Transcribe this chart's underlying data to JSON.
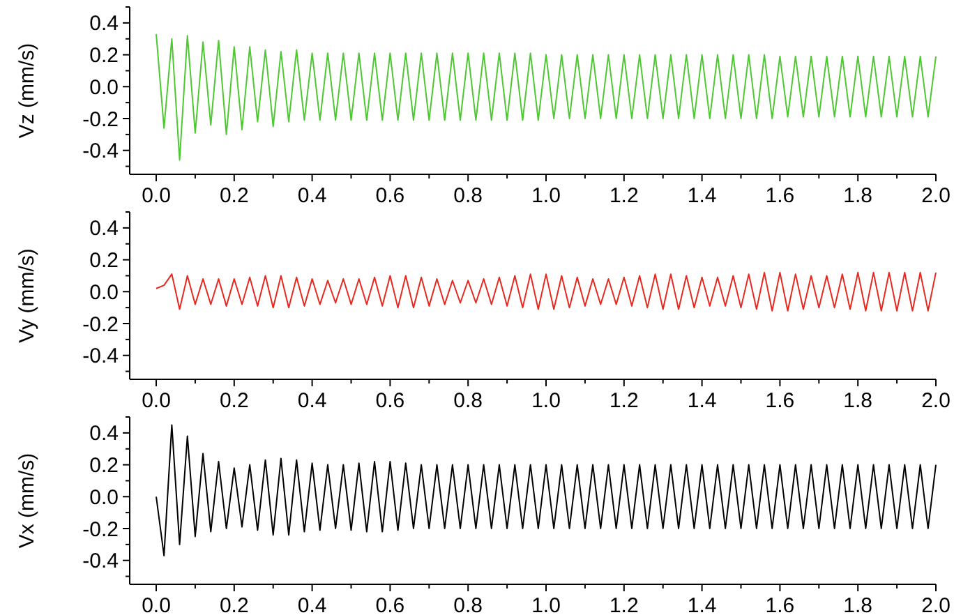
{
  "chart_data": [
    {
      "type": "line",
      "ylabel": "Vz (mm/s)",
      "xlim": [
        -0.068,
        2.0
      ],
      "ylim": [
        -0.55,
        0.5
      ],
      "xticks": [
        {
          "value": 0,
          "label": "0.0"
        },
        {
          "value": 0.1,
          "label": null
        },
        {
          "value": 0.2,
          "label": "0.2"
        },
        {
          "value": 0.3,
          "label": null
        },
        {
          "value": 0.4,
          "label": "0.4"
        },
        {
          "value": 0.5,
          "label": null
        },
        {
          "value": 0.6,
          "label": "0.6"
        },
        {
          "value": 0.7,
          "label": null
        },
        {
          "value": 0.8,
          "label": "0.8"
        },
        {
          "value": 0.9,
          "label": null
        },
        {
          "value": 1,
          "label": "1.0"
        },
        {
          "value": 1.1,
          "label": null
        },
        {
          "value": 1.2,
          "label": "1.2"
        },
        {
          "value": 1.3,
          "label": null
        },
        {
          "value": 1.4,
          "label": "1.4"
        },
        {
          "value": 1.5,
          "label": null
        },
        {
          "value": 1.6,
          "label": "1.6"
        },
        {
          "value": 1.7,
          "label": null
        },
        {
          "value": 1.8,
          "label": "1.8"
        },
        {
          "value": 1.9,
          "label": null
        },
        {
          "value": 2,
          "label": "2.0"
        }
      ],
      "yticks": [
        {
          "value": -0.5,
          "label": null
        },
        {
          "value": -0.4,
          "label": "-0.4"
        },
        {
          "value": -0.3,
          "label": null
        },
        {
          "value": -0.2,
          "label": "-0.2"
        },
        {
          "value": -0.1,
          "label": null
        },
        {
          "value": 0,
          "label": "0.0"
        },
        {
          "value": 0.1,
          "label": null
        },
        {
          "value": 0.2,
          "label": "0.2"
        },
        {
          "value": 0.3,
          "label": null
        },
        {
          "value": 0.4,
          "label": "0.4"
        },
        {
          "value": 0.5,
          "label": null
        }
      ],
      "x": [
        0,
        0.02,
        0.04,
        0.06,
        0.08,
        0.1,
        0.12,
        0.14,
        0.16,
        0.18,
        0.2,
        0.22,
        0.24,
        0.26,
        0.28,
        0.3,
        0.32,
        0.34,
        0.36,
        0.38,
        0.4,
        0.42,
        0.44,
        0.46,
        0.48,
        0.5,
        0.52,
        0.54,
        0.56,
        0.58,
        0.6,
        0.62,
        0.64,
        0.66,
        0.68,
        0.7,
        0.72,
        0.74,
        0.76,
        0.78,
        0.8,
        0.82,
        0.84,
        0.86,
        0.88,
        0.9,
        0.92,
        0.94,
        0.96,
        0.98,
        1,
        1.02,
        1.04,
        1.06,
        1.08,
        1.1,
        1.12,
        1.14,
        1.16,
        1.18,
        1.2,
        1.22,
        1.24,
        1.26,
        1.28,
        1.3,
        1.32,
        1.34,
        1.36,
        1.38,
        1.4,
        1.42,
        1.44,
        1.46,
        1.48,
        1.5,
        1.52,
        1.54,
        1.56,
        1.58,
        1.6,
        1.62,
        1.64,
        1.66,
        1.68,
        1.7,
        1.72,
        1.74,
        1.76,
        1.78,
        1.8,
        1.82,
        1.84,
        1.86,
        1.88,
        1.9,
        1.92,
        1.94,
        1.96,
        1.98,
        2
      ],
      "series": [
        {
          "color": "#4ec832",
          "values": [
            0.33,
            -0.26,
            0.3,
            -0.46,
            0.32,
            -0.29,
            0.28,
            -0.24,
            0.29,
            -0.3,
            0.25,
            -0.27,
            0.25,
            -0.22,
            0.23,
            -0.25,
            0.22,
            -0.22,
            0.23,
            -0.21,
            0.21,
            -0.21,
            0.21,
            -0.21,
            0.21,
            -0.21,
            0.21,
            -0.21,
            0.21,
            -0.21,
            0.21,
            -0.21,
            0.21,
            -0.21,
            0.21,
            -0.21,
            0.21,
            -0.21,
            0.21,
            -0.21,
            0.21,
            -0.21,
            0.21,
            -0.21,
            0.21,
            -0.21,
            0.21,
            -0.21,
            0.21,
            -0.21,
            0.2,
            -0.2,
            0.2,
            -0.2,
            0.2,
            -0.2,
            0.2,
            -0.2,
            0.2,
            -0.2,
            0.2,
            -0.2,
            0.2,
            -0.2,
            0.2,
            -0.2,
            0.2,
            -0.2,
            0.2,
            -0.2,
            0.2,
            -0.2,
            0.2,
            -0.2,
            0.2,
            -0.2,
            0.2,
            -0.2,
            0.2,
            -0.2,
            0.19,
            -0.19,
            0.19,
            -0.19,
            0.19,
            -0.19,
            0.19,
            -0.19,
            0.19,
            -0.19,
            0.19,
            -0.19,
            0.19,
            -0.19,
            0.19,
            -0.19,
            0.19,
            -0.19,
            0.19,
            -0.19,
            0.19
          ]
        }
      ]
    },
    {
      "type": "line",
      "ylabel": "Vy (mm/s)",
      "xlim": [
        -0.068,
        2.0
      ],
      "ylim": [
        -0.55,
        0.5
      ],
      "xticks": [
        {
          "value": 0,
          "label": "0.0"
        },
        {
          "value": 0.1,
          "label": null
        },
        {
          "value": 0.2,
          "label": "0.2"
        },
        {
          "value": 0.3,
          "label": null
        },
        {
          "value": 0.4,
          "label": "0.4"
        },
        {
          "value": 0.5,
          "label": null
        },
        {
          "value": 0.6,
          "label": "0.6"
        },
        {
          "value": 0.7,
          "label": null
        },
        {
          "value": 0.8,
          "label": "0.8"
        },
        {
          "value": 0.9,
          "label": null
        },
        {
          "value": 1,
          "label": "1.0"
        },
        {
          "value": 1.1,
          "label": null
        },
        {
          "value": 1.2,
          "label": "1.2"
        },
        {
          "value": 1.3,
          "label": null
        },
        {
          "value": 1.4,
          "label": "1.4"
        },
        {
          "value": 1.5,
          "label": null
        },
        {
          "value": 1.6,
          "label": "1.6"
        },
        {
          "value": 1.7,
          "label": null
        },
        {
          "value": 1.8,
          "label": "1.8"
        },
        {
          "value": 1.9,
          "label": null
        },
        {
          "value": 2,
          "label": "2.0"
        }
      ],
      "yticks": [
        {
          "value": -0.5,
          "label": null
        },
        {
          "value": -0.4,
          "label": "-0.4"
        },
        {
          "value": -0.3,
          "label": null
        },
        {
          "value": -0.2,
          "label": "-0.2"
        },
        {
          "value": -0.1,
          "label": null
        },
        {
          "value": 0,
          "label": "0.0"
        },
        {
          "value": 0.1,
          "label": null
        },
        {
          "value": 0.2,
          "label": "0.2"
        },
        {
          "value": 0.3,
          "label": null
        },
        {
          "value": 0.4,
          "label": "0.4"
        },
        {
          "value": 0.5,
          "label": null
        }
      ],
      "x": [
        0,
        0.02,
        0.04,
        0.06,
        0.08,
        0.1,
        0.12,
        0.14,
        0.16,
        0.18,
        0.2,
        0.22,
        0.24,
        0.26,
        0.28,
        0.3,
        0.32,
        0.34,
        0.36,
        0.38,
        0.4,
        0.42,
        0.44,
        0.46,
        0.48,
        0.5,
        0.52,
        0.54,
        0.56,
        0.58,
        0.6,
        0.62,
        0.64,
        0.66,
        0.68,
        0.7,
        0.72,
        0.74,
        0.76,
        0.78,
        0.8,
        0.82,
        0.84,
        0.86,
        0.88,
        0.9,
        0.92,
        0.94,
        0.96,
        0.98,
        1,
        1.02,
        1.04,
        1.06,
        1.08,
        1.1,
        1.12,
        1.14,
        1.16,
        1.18,
        1.2,
        1.22,
        1.24,
        1.26,
        1.28,
        1.3,
        1.32,
        1.34,
        1.36,
        1.38,
        1.4,
        1.42,
        1.44,
        1.46,
        1.48,
        1.5,
        1.52,
        1.54,
        1.56,
        1.58,
        1.6,
        1.62,
        1.64,
        1.66,
        1.68,
        1.7,
        1.72,
        1.74,
        1.76,
        1.78,
        1.8,
        1.82,
        1.84,
        1.86,
        1.88,
        1.9,
        1.92,
        1.94,
        1.96,
        1.98,
        2
      ],
      "series": [
        {
          "color": "#e8281e",
          "values": [
            0.02,
            0.04,
            0.11,
            -0.11,
            0.1,
            -0.08,
            0.08,
            -0.08,
            0.08,
            -0.09,
            0.08,
            -0.08,
            0.09,
            -0.09,
            0.1,
            -0.1,
            0.1,
            -0.1,
            0.09,
            -0.09,
            0.08,
            -0.08,
            0.07,
            -0.07,
            0.08,
            -0.08,
            0.08,
            -0.08,
            0.09,
            -0.09,
            0.1,
            -0.1,
            0.1,
            -0.1,
            0.09,
            -0.09,
            0.08,
            -0.08,
            0.07,
            -0.07,
            0.07,
            -0.07,
            0.08,
            -0.08,
            0.09,
            -0.09,
            0.1,
            -0.1,
            0.11,
            -0.11,
            0.11,
            -0.11,
            0.1,
            -0.1,
            0.09,
            -0.09,
            0.08,
            -0.08,
            0.08,
            -0.08,
            0.09,
            -0.09,
            0.1,
            -0.1,
            0.11,
            -0.11,
            0.11,
            -0.11,
            0.1,
            -0.1,
            0.09,
            -0.09,
            0.09,
            -0.09,
            0.1,
            -0.1,
            0.11,
            -0.11,
            0.12,
            -0.12,
            0.12,
            -0.12,
            0.11,
            -0.11,
            0.1,
            -0.1,
            0.1,
            -0.1,
            0.11,
            -0.11,
            0.12,
            -0.12,
            0.12,
            -0.12,
            0.12,
            -0.12,
            0.12,
            -0.12,
            0.12,
            -0.12,
            0.12
          ]
        }
      ]
    },
    {
      "type": "line",
      "ylabel": "Vx (mm/s)",
      "xlim": [
        -0.068,
        2.0
      ],
      "ylim": [
        -0.55,
        0.5
      ],
      "xticks": [
        {
          "value": 0,
          "label": "0.0"
        },
        {
          "value": 0.1,
          "label": null
        },
        {
          "value": 0.2,
          "label": "0.2"
        },
        {
          "value": 0.3,
          "label": null
        },
        {
          "value": 0.4,
          "label": "0.4"
        },
        {
          "value": 0.5,
          "label": null
        },
        {
          "value": 0.6,
          "label": "0.6"
        },
        {
          "value": 0.7,
          "label": null
        },
        {
          "value": 0.8,
          "label": "0.8"
        },
        {
          "value": 0.9,
          "label": null
        },
        {
          "value": 1,
          "label": "1.0"
        },
        {
          "value": 1.1,
          "label": null
        },
        {
          "value": 1.2,
          "label": "1.2"
        },
        {
          "value": 1.3,
          "label": null
        },
        {
          "value": 1.4,
          "label": "1.4"
        },
        {
          "value": 1.5,
          "label": null
        },
        {
          "value": 1.6,
          "label": "1.6"
        },
        {
          "value": 1.7,
          "label": null
        },
        {
          "value": 1.8,
          "label": "1.8"
        },
        {
          "value": 1.9,
          "label": null
        },
        {
          "value": 2,
          "label": "2.0"
        }
      ],
      "yticks": [
        {
          "value": -0.5,
          "label": null
        },
        {
          "value": -0.4,
          "label": "-0.4"
        },
        {
          "value": -0.3,
          "label": null
        },
        {
          "value": -0.2,
          "label": "-0.2"
        },
        {
          "value": -0.1,
          "label": null
        },
        {
          "value": 0,
          "label": "0.0"
        },
        {
          "value": 0.1,
          "label": null
        },
        {
          "value": 0.2,
          "label": "0.2"
        },
        {
          "value": 0.3,
          "label": null
        },
        {
          "value": 0.4,
          "label": "0.4"
        },
        {
          "value": 0.5,
          "label": null
        }
      ],
      "x": [
        0,
        0.02,
        0.04,
        0.06,
        0.08,
        0.1,
        0.12,
        0.14,
        0.16,
        0.18,
        0.2,
        0.22,
        0.24,
        0.26,
        0.28,
        0.3,
        0.32,
        0.34,
        0.36,
        0.38,
        0.4,
        0.42,
        0.44,
        0.46,
        0.48,
        0.5,
        0.52,
        0.54,
        0.56,
        0.58,
        0.6,
        0.62,
        0.64,
        0.66,
        0.68,
        0.7,
        0.72,
        0.74,
        0.76,
        0.78,
        0.8,
        0.82,
        0.84,
        0.86,
        0.88,
        0.9,
        0.92,
        0.94,
        0.96,
        0.98,
        1,
        1.02,
        1.04,
        1.06,
        1.08,
        1.1,
        1.12,
        1.14,
        1.16,
        1.18,
        1.2,
        1.22,
        1.24,
        1.26,
        1.28,
        1.3,
        1.32,
        1.34,
        1.36,
        1.38,
        1.4,
        1.42,
        1.44,
        1.46,
        1.48,
        1.5,
        1.52,
        1.54,
        1.56,
        1.58,
        1.6,
        1.62,
        1.64,
        1.66,
        1.68,
        1.7,
        1.72,
        1.74,
        1.76,
        1.78,
        1.8,
        1.82,
        1.84,
        1.86,
        1.88,
        1.9,
        1.92,
        1.94,
        1.96,
        1.98,
        2
      ],
      "series": [
        {
          "color": "#000000",
          "values": [
            0,
            -0.37,
            0.45,
            -0.3,
            0.38,
            -0.25,
            0.27,
            -0.22,
            0.22,
            -0.2,
            0.18,
            -0.19,
            0.2,
            -0.21,
            0.23,
            -0.24,
            0.24,
            -0.24,
            0.23,
            -0.22,
            0.21,
            -0.21,
            0.2,
            -0.2,
            0.2,
            -0.21,
            0.21,
            -0.22,
            0.22,
            -0.22,
            0.22,
            -0.21,
            0.21,
            -0.2,
            0.2,
            -0.2,
            0.2,
            -0.2,
            0.2,
            -0.2,
            0.2,
            -0.2,
            0.2,
            -0.2,
            0.2,
            -0.2,
            0.2,
            -0.2,
            0.2,
            -0.2,
            0.2,
            -0.2,
            0.2,
            -0.2,
            0.2,
            -0.2,
            0.2,
            -0.2,
            0.2,
            -0.2,
            0.2,
            -0.2,
            0.2,
            -0.2,
            0.2,
            -0.2,
            0.2,
            -0.2,
            0.2,
            -0.2,
            0.2,
            -0.2,
            0.2,
            -0.2,
            0.2,
            -0.2,
            0.2,
            -0.2,
            0.2,
            -0.2,
            0.2,
            -0.2,
            0.2,
            -0.2,
            0.2,
            -0.2,
            0.2,
            -0.2,
            0.2,
            -0.2,
            0.2,
            -0.2,
            0.2,
            -0.2,
            0.2,
            -0.2,
            0.2,
            -0.2,
            0.2,
            -0.2,
            0.2
          ]
        }
      ]
    }
  ]
}
